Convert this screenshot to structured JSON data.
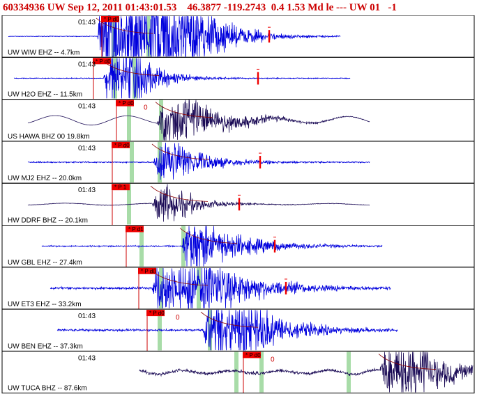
{
  "header": {
    "text": "60334936 UW Sep 12, 2011 01:43:01.53    46.3877 -119.2743  0.4 1.53 Md le --- UW 01   -1"
  },
  "colors": {
    "header_red": "#cc0000",
    "trace_blue": "#0000dd",
    "trace_dark": "#1a0a55",
    "pick_red": "#ee0000",
    "band_green": "#a8dca8",
    "border": "#000000"
  },
  "time_label": "01:43",
  "panels": [
    {
      "id": "wiw",
      "label": "UW WIW EHZ -- 4.7km",
      "color": "blue",
      "pick": "P d0",
      "time_label_visible": true
    },
    {
      "id": "h2o",
      "label": "UW H2O EHZ -- 11.5km",
      "color": "blue",
      "pick": "P d0",
      "time_label_visible": true
    },
    {
      "id": "hawa",
      "label": "US HAWA BHZ 00 19.8km",
      "color": "dark",
      "pick": "P d0",
      "time_label_visible": true,
      "origin_marker": "0"
    },
    {
      "id": "mj2",
      "label": "UW MJ2 EHZ -- 20.0km",
      "color": "blue",
      "pick": "P d0",
      "time_label_visible": true
    },
    {
      "id": "ddrf",
      "label": "HW DDRF BHZ -- 20.1km",
      "color": "dark",
      "pick": "P 1",
      "time_label_visible": true
    },
    {
      "id": "gbl",
      "label": "UW GBL EHZ -- 27.4km",
      "color": "blue",
      "pick": "P d1",
      "time_label_visible": false
    },
    {
      "id": "et3",
      "label": "UW ET3 EHZ -- 33.2km",
      "color": "blue",
      "pick": "P d0",
      "time_label_visible": false
    },
    {
      "id": "ben",
      "label": "UW BEN EHZ -- 37.3km",
      "color": "blue",
      "pick": "P d0",
      "time_label_visible": true,
      "origin_marker": "0"
    },
    {
      "id": "tuca",
      "label": "UW TUCA BHZ -- 87.6km",
      "color": "dark",
      "pick": "P d0",
      "time_label_visible": true,
      "origin_marker": "0"
    }
  ]
}
